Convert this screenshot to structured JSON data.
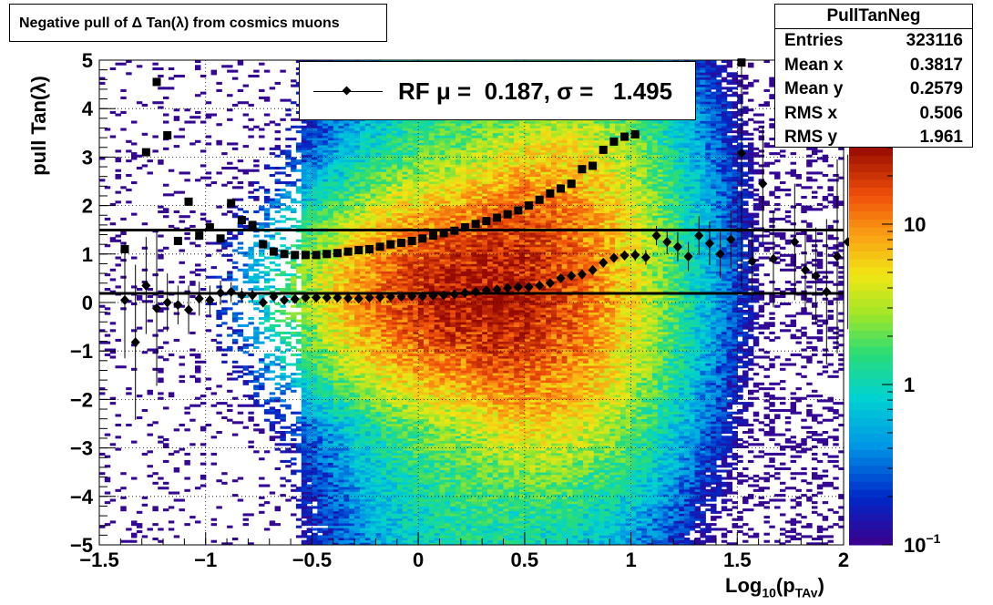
{
  "title": "Negative pull of Δ Tan(λ) from cosmics muons",
  "stats": {
    "name": "PullTanNeg",
    "rows": [
      {
        "label": "Entries",
        "value": "323116"
      },
      {
        "label": "Mean x",
        "value": "0.3817"
      },
      {
        "label": "Mean y",
        "value": "0.2579"
      },
      {
        "label": "RMS x",
        "value": "0.506"
      },
      {
        "label": "RMS y",
        "value": "1.961"
      }
    ]
  },
  "legend": {
    "text": "RF μ =  0.187, σ =   1.495"
  },
  "axes": {
    "ylabel": "pull Tan(λ)",
    "xlabel_main": "Log",
    "xlabel_sub": "10",
    "xlabel_paren": "(p",
    "xlabel_sub2": "TAv",
    "xlabel_close": ")"
  },
  "chart_data": {
    "type": "heatmap",
    "xlim": [
      -1.5,
      2
    ],
    "ylim": [
      -5,
      5
    ],
    "zscale": "log",
    "zlim": [
      0.1,
      30
    ],
    "grid": true,
    "x_ticks": [
      "−1.5",
      "−1",
      "−0.5",
      "0",
      "0.5",
      "1",
      "1.5",
      "2"
    ],
    "x_tick_values": [
      -1.5,
      -1,
      -0.5,
      0,
      0.5,
      1,
      1.5,
      2
    ],
    "y_ticks": [
      "−5",
      "−4",
      "−3",
      "−2",
      "−1",
      "0",
      "1",
      "2",
      "3",
      "4",
      "5"
    ],
    "y_tick_values": [
      -5,
      -4,
      -3,
      -2,
      -1,
      0,
      1,
      2,
      3,
      4,
      5
    ],
    "z_ticks": [
      {
        "value": 10,
        "label": "10"
      },
      {
        "value": 1,
        "label": "1"
      },
      {
        "value": 0.1,
        "label": "10",
        "sup": "−1"
      }
    ],
    "hlines": [
      1.495,
      0.187
    ],
    "profile_mean": {
      "marker": "diamond",
      "points": [
        {
          "x": -1.38,
          "y": 0.05,
          "err": 1.2
        },
        {
          "x": -1.33,
          "y": -0.82,
          "err": 1.6
        },
        {
          "x": -1.28,
          "y": 0.35,
          "err": 1.0
        },
        {
          "x": -1.23,
          "y": -0.12,
          "err": 1.6
        },
        {
          "x": -1.18,
          "y": 0.0,
          "err": 0.6
        },
        {
          "x": -1.13,
          "y": -0.05,
          "err": 0.4
        },
        {
          "x": -1.08,
          "y": -0.15,
          "err": 0.5
        },
        {
          "x": -1.03,
          "y": 0.08,
          "err": 0.35
        },
        {
          "x": -0.98,
          "y": 0.05,
          "err": 0.3
        },
        {
          "x": -0.93,
          "y": 0.2,
          "err": 0.25
        },
        {
          "x": -0.88,
          "y": 0.22,
          "err": 0.2
        },
        {
          "x": -0.83,
          "y": 0.15,
          "err": 0.15
        },
        {
          "x": -0.78,
          "y": 0.15,
          "err": 0.12
        },
        {
          "x": -0.73,
          "y": 0.0,
          "err": 0.1
        },
        {
          "x": -0.68,
          "y": 0.12,
          "err": 0.08
        },
        {
          "x": -0.63,
          "y": 0.05,
          "err": 0.06
        },
        {
          "x": -0.58,
          "y": 0.07,
          "err": 0.05
        },
        {
          "x": -0.53,
          "y": 0.1,
          "err": 0.04
        },
        {
          "x": -0.48,
          "y": 0.1,
          "err": 0.04
        },
        {
          "x": -0.43,
          "y": 0.1,
          "err": 0.03
        },
        {
          "x": -0.38,
          "y": 0.1,
          "err": 0.03
        },
        {
          "x": -0.33,
          "y": 0.09,
          "err": 0.03
        },
        {
          "x": -0.28,
          "y": 0.08,
          "err": 0.03
        },
        {
          "x": -0.23,
          "y": 0.1,
          "err": 0.03
        },
        {
          "x": -0.18,
          "y": 0.11,
          "err": 0.02
        },
        {
          "x": -0.13,
          "y": 0.12,
          "err": 0.02
        },
        {
          "x": -0.08,
          "y": 0.12,
          "err": 0.02
        },
        {
          "x": -0.03,
          "y": 0.13,
          "err": 0.02
        },
        {
          "x": 0.02,
          "y": 0.13,
          "err": 0.02
        },
        {
          "x": 0.07,
          "y": 0.14,
          "err": 0.02
        },
        {
          "x": 0.12,
          "y": 0.15,
          "err": 0.02
        },
        {
          "x": 0.17,
          "y": 0.17,
          "err": 0.02
        },
        {
          "x": 0.22,
          "y": 0.2,
          "err": 0.02
        },
        {
          "x": 0.27,
          "y": 0.22,
          "err": 0.02
        },
        {
          "x": 0.32,
          "y": 0.25,
          "err": 0.02
        },
        {
          "x": 0.37,
          "y": 0.27,
          "err": 0.02
        },
        {
          "x": 0.42,
          "y": 0.3,
          "err": 0.02
        },
        {
          "x": 0.47,
          "y": 0.32,
          "err": 0.02
        },
        {
          "x": 0.52,
          "y": 0.32,
          "err": 0.02
        },
        {
          "x": 0.57,
          "y": 0.35,
          "err": 0.03
        },
        {
          "x": 0.62,
          "y": 0.4,
          "err": 0.03
        },
        {
          "x": 0.67,
          "y": 0.5,
          "err": 0.03
        },
        {
          "x": 0.72,
          "y": 0.55,
          "err": 0.04
        },
        {
          "x": 0.77,
          "y": 0.58,
          "err": 0.05
        },
        {
          "x": 0.82,
          "y": 0.67,
          "err": 0.06
        },
        {
          "x": 0.87,
          "y": 0.82,
          "err": 0.07
        },
        {
          "x": 0.92,
          "y": 0.92,
          "err": 0.08
        },
        {
          "x": 0.97,
          "y": 0.97,
          "err": 0.1
        },
        {
          "x": 1.02,
          "y": 0.98,
          "err": 0.12
        },
        {
          "x": 1.07,
          "y": 0.93,
          "err": 0.15
        },
        {
          "x": 1.12,
          "y": 1.38,
          "err": 0.2
        },
        {
          "x": 1.17,
          "y": 1.25,
          "err": 0.25
        },
        {
          "x": 1.22,
          "y": 1.15,
          "err": 0.3
        },
        {
          "x": 1.27,
          "y": 0.95,
          "err": 0.3
        },
        {
          "x": 1.32,
          "y": 1.38,
          "err": 0.4
        },
        {
          "x": 1.37,
          "y": 1.22,
          "err": 0.45
        },
        {
          "x": 1.42,
          "y": 1.0,
          "err": 0.5
        },
        {
          "x": 1.47,
          "y": 1.3,
          "err": 0.6
        },
        {
          "x": 1.52,
          "y": 3.08,
          "err": 2.8
        },
        {
          "x": 1.57,
          "y": 0.85,
          "err": 0.8
        },
        {
          "x": 1.62,
          "y": 2.45,
          "err": 1.2
        },
        {
          "x": 1.67,
          "y": 0.9,
          "err": 1.0
        },
        {
          "x": 1.77,
          "y": 1.25,
          "err": 1.2
        },
        {
          "x": 1.82,
          "y": 0.67,
          "err": 0.8
        },
        {
          "x": 1.87,
          "y": 0.55,
          "err": 1.0
        },
        {
          "x": 1.92,
          "y": 0.22,
          "err": 1.5
        },
        {
          "x": 1.97,
          "y": 0.95,
          "err": 2.0
        },
        {
          "x": 2.02,
          "y": 1.25,
          "err": 1.8
        }
      ]
    },
    "profile_rms": {
      "marker": "square",
      "points": [
        {
          "x": -1.38,
          "y": 1.1
        },
        {
          "x": -1.28,
          "y": 3.1
        },
        {
          "x": -1.23,
          "y": 4.55
        },
        {
          "x": -1.18,
          "y": 3.45
        },
        {
          "x": -1.13,
          "y": 1.27
        },
        {
          "x": -1.08,
          "y": 2.08
        },
        {
          "x": -1.03,
          "y": 1.38
        },
        {
          "x": -0.98,
          "y": 1.55
        },
        {
          "x": -0.93,
          "y": 1.32
        },
        {
          "x": -0.88,
          "y": 2.05
        },
        {
          "x": -0.83,
          "y": 1.7
        },
        {
          "x": -0.78,
          "y": 1.6
        },
        {
          "x": -0.73,
          "y": 1.2
        },
        {
          "x": -0.68,
          "y": 1.05
        },
        {
          "x": -0.63,
          "y": 1.0
        },
        {
          "x": -0.58,
          "y": 0.98
        },
        {
          "x": -0.53,
          "y": 0.98
        },
        {
          "x": -0.48,
          "y": 0.98
        },
        {
          "x": -0.43,
          "y": 1.0
        },
        {
          "x": -0.38,
          "y": 1.02
        },
        {
          "x": -0.33,
          "y": 1.05
        },
        {
          "x": -0.28,
          "y": 1.08
        },
        {
          "x": -0.23,
          "y": 1.1
        },
        {
          "x": -0.18,
          "y": 1.15
        },
        {
          "x": -0.13,
          "y": 1.2
        },
        {
          "x": -0.08,
          "y": 1.23
        },
        {
          "x": -0.03,
          "y": 1.27
        },
        {
          "x": 0.02,
          "y": 1.32
        },
        {
          "x": 0.07,
          "y": 1.38
        },
        {
          "x": 0.12,
          "y": 1.43
        },
        {
          "x": 0.17,
          "y": 1.48
        },
        {
          "x": 0.22,
          "y": 1.55
        },
        {
          "x": 0.27,
          "y": 1.62
        },
        {
          "x": 0.32,
          "y": 1.68
        },
        {
          "x": 0.37,
          "y": 1.75
        },
        {
          "x": 0.42,
          "y": 1.82
        },
        {
          "x": 0.47,
          "y": 1.9
        },
        {
          "x": 0.52,
          "y": 2.0
        },
        {
          "x": 0.57,
          "y": 2.12
        },
        {
          "x": 0.62,
          "y": 2.25
        },
        {
          "x": 0.67,
          "y": 2.35
        },
        {
          "x": 0.72,
          "y": 2.45
        },
        {
          "x": 0.77,
          "y": 2.75
        },
        {
          "x": 0.82,
          "y": 2.82
        },
        {
          "x": 0.87,
          "y": 3.15
        },
        {
          "x": 0.92,
          "y": 3.32
        },
        {
          "x": 0.97,
          "y": 3.42
        },
        {
          "x": 1.02,
          "y": 3.47
        },
        {
          "x": 1.52,
          "y": 4.95
        }
      ]
    }
  }
}
